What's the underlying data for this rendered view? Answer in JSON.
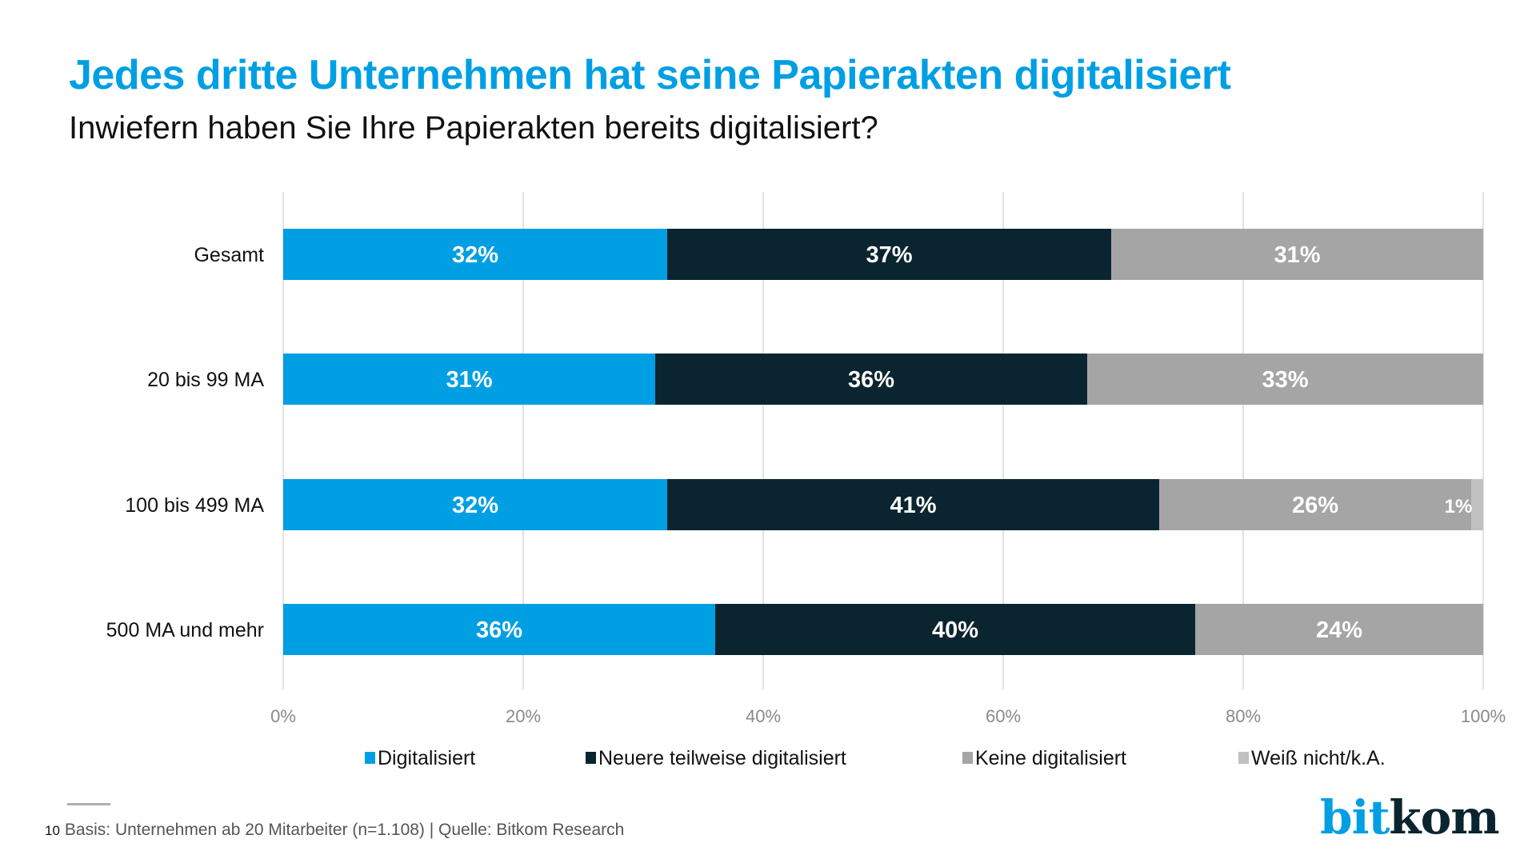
{
  "header": {
    "title": "Jedes dritte Unternehmen hat seine Papierakten digitalisiert",
    "subtitle": "Inwiefern haben Sie Ihre Papierakten bereits digitalisiert?"
  },
  "chart_data": {
    "type": "bar",
    "orientation": "horizontal",
    "stacked": true,
    "title": "Jedes dritte Unternehmen hat seine Papierakten digitalisiert",
    "subtitle": "Inwiefern haben Sie Ihre Papierakten bereits digitalisiert?",
    "xlabel": "",
    "ylabel": "",
    "xlim": [
      0,
      100
    ],
    "x_ticks": [
      "0%",
      "20%",
      "40%",
      "60%",
      "80%",
      "100%"
    ],
    "grid": true,
    "legend_position": "bottom",
    "categories": [
      "Gesamt",
      "20 bis 99 MA",
      "100 bis 499 MA",
      "500 MA und mehr"
    ],
    "series": [
      {
        "name": "Digitalisiert",
        "color": "#009fe3",
        "values": [
          32,
          31,
          32,
          36
        ],
        "labels": [
          "32%",
          "31%",
          "32%",
          "36%"
        ]
      },
      {
        "name": "Neuere teilweise digitalisiert",
        "color": "#0b2530",
        "values": [
          37,
          36,
          41,
          40
        ],
        "labels": [
          "37%",
          "36%",
          "41%",
          "40%"
        ]
      },
      {
        "name": "Keine digitalisiert",
        "color": "#a5a5a5",
        "values": [
          31,
          33,
          26,
          24
        ],
        "labels": [
          "31%",
          "33%",
          "26%",
          "24%"
        ]
      },
      {
        "name": "Weiß nicht/k.A.",
        "color": "#c0c0c0",
        "values": [
          0,
          0,
          1,
          0.5
        ],
        "labels": [
          "",
          "",
          "1%",
          ""
        ]
      }
    ]
  },
  "footer": {
    "page_number": "10",
    "source": "Basis: Unternehmen ab 20 Mitarbeiter (n=1.108) | Quelle: Bitkom Research"
  },
  "logo": {
    "part1": "bit",
    "part2": "kom"
  }
}
